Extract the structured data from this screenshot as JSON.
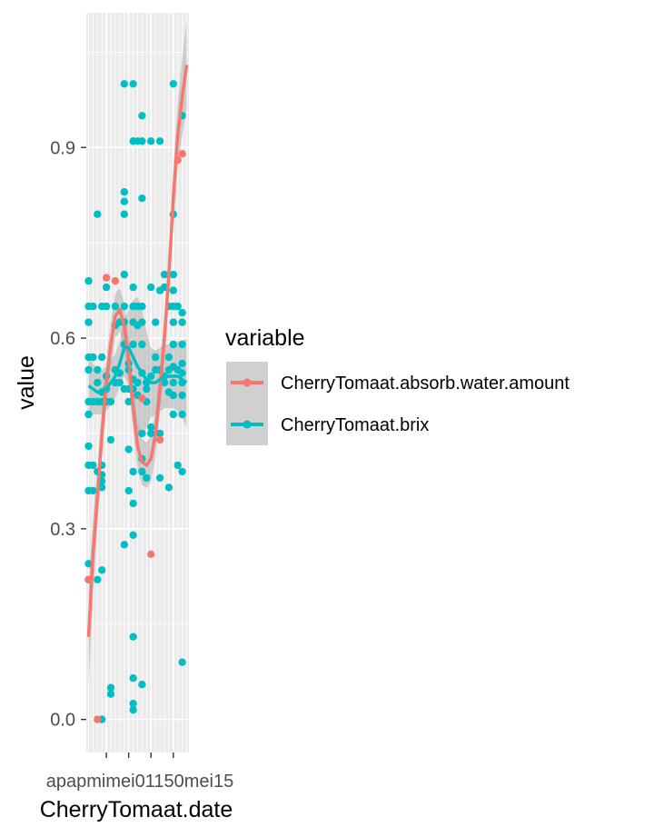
{
  "chart_data": {
    "type": "scatter",
    "title": "",
    "xlabel": "CherryTomaat.date",
    "ylabel": "value",
    "xlim": [
      0.5,
      23.5
    ],
    "ylim": [
      -0.052,
      1.112
    ],
    "y_ticks": [
      0.0,
      0.3,
      0.6,
      0.9
    ],
    "y_tick_labels": [
      "0.0",
      "0.3",
      "0.6",
      "0.9"
    ],
    "x_ticks": [
      5,
      10,
      15,
      20
    ],
    "x_tick_labels": [
      "apr",
      "apr",
      "mei",
      "mei"
    ],
    "x_tick_text": "apapmimei01150mei15",
    "grid": true,
    "legend_title": "variable",
    "legend_position": "right",
    "colors": {
      "absorb": "#F8766D",
      "brix": "#00BFC4",
      "panel": "#EBEBEB",
      "ribbon": "#999999"
    },
    "series": [
      {
        "name": "CherryTomaat.absorb.water.amount",
        "color": "#F8766D",
        "points": [
          [
            1,
            0.22
          ],
          [
            3,
            0.0
          ],
          [
            5,
            0.695
          ],
          [
            7,
            0.69
          ],
          [
            13,
            0.505
          ],
          [
            15,
            0.26
          ],
          [
            17,
            0.44
          ],
          [
            21,
            0.88
          ],
          [
            22,
            0.89
          ]
        ],
        "smooth": [
          [
            1,
            0.13
          ],
          [
            2,
            0.26
          ],
          [
            3,
            0.35
          ],
          [
            4,
            0.45
          ],
          [
            5,
            0.53
          ],
          [
            6,
            0.59
          ],
          [
            7,
            0.635
          ],
          [
            8,
            0.645
          ],
          [
            9,
            0.62
          ],
          [
            10,
            0.565
          ],
          [
            11,
            0.49
          ],
          [
            12,
            0.43
          ],
          [
            13,
            0.405
          ],
          [
            14,
            0.4
          ],
          [
            15,
            0.41
          ],
          [
            16,
            0.45
          ],
          [
            17,
            0.52
          ],
          [
            18,
            0.6
          ],
          [
            19,
            0.7
          ],
          [
            20,
            0.82
          ],
          [
            21,
            0.92
          ],
          [
            22,
            0.98
          ],
          [
            23,
            1.03
          ]
        ],
        "band_width": [
          0.075,
          0.06,
          0.045,
          0.04,
          0.038,
          0.036,
          0.035,
          0.034,
          0.034,
          0.035,
          0.036,
          0.036,
          0.036,
          0.036,
          0.036,
          0.036,
          0.036,
          0.038,
          0.04,
          0.045,
          0.05,
          0.06,
          0.07
        ]
      },
      {
        "name": "CherryTomaat.brix",
        "color": "#00BFC4",
        "points": [
          [
            1,
            0.69
          ],
          [
            1,
            0.65
          ],
          [
            1,
            0.625
          ],
          [
            1,
            0.57
          ],
          [
            1,
            0.55
          ],
          [
            1,
            0.5
          ],
          [
            1,
            0.48
          ],
          [
            1,
            0.43
          ],
          [
            1,
            0.4
          ],
          [
            1,
            0.36
          ],
          [
            1,
            0.245
          ],
          [
            1,
            0.22
          ],
          [
            2,
            0.65
          ],
          [
            2,
            0.57
          ],
          [
            2,
            0.5
          ],
          [
            2,
            0.4
          ],
          [
            2,
            0.36
          ],
          [
            3,
            0.795
          ],
          [
            3,
            0.55
          ],
          [
            3,
            0.53
          ],
          [
            3,
            0.5
          ],
          [
            3,
            0.39
          ],
          [
            3,
            0.22
          ],
          [
            4,
            0.65
          ],
          [
            4,
            0.57
          ],
          [
            4,
            0.515
          ],
          [
            4,
            0.5
          ],
          [
            4,
            0.4
          ],
          [
            4,
            0.385
          ],
          [
            4,
            0.375
          ],
          [
            4,
            0.365
          ],
          [
            4,
            0.235
          ],
          [
            4,
            0.0
          ],
          [
            5,
            0.68
          ],
          [
            5,
            0.65
          ],
          [
            5,
            0.54
          ],
          [
            5,
            0.52
          ],
          [
            5,
            0.5
          ],
          [
            6,
            0.5
          ],
          [
            6,
            0.44
          ],
          [
            6,
            0.05
          ],
          [
            6,
            0.04
          ],
          [
            7,
            0.65
          ],
          [
            7,
            0.62
          ],
          [
            7,
            0.55
          ],
          [
            7,
            0.53
          ],
          [
            8,
            0.625
          ],
          [
            8,
            0.545
          ],
          [
            8,
            0.53
          ],
          [
            9,
            1.0
          ],
          [
            9,
            0.83
          ],
          [
            9,
            0.815
          ],
          [
            9,
            0.795
          ],
          [
            9,
            0.7
          ],
          [
            9,
            0.65
          ],
          [
            9,
            0.625
          ],
          [
            9,
            0.59
          ],
          [
            9,
            0.52
          ],
          [
            9,
            0.275
          ],
          [
            10,
            0.56
          ],
          [
            10,
            0.55
          ],
          [
            10,
            0.52
          ],
          [
            10,
            0.5
          ],
          [
            10,
            0.425
          ],
          [
            10,
            0.36
          ],
          [
            11,
            1.0
          ],
          [
            11,
            0.91
          ],
          [
            11,
            0.68
          ],
          [
            11,
            0.65
          ],
          [
            11,
            0.625
          ],
          [
            11,
            0.59
          ],
          [
            11,
            0.535
          ],
          [
            11,
            0.52
          ],
          [
            11,
            0.39
          ],
          [
            11,
            0.34
          ],
          [
            11,
            0.29
          ],
          [
            11,
            0.13
          ],
          [
            11,
            0.065
          ],
          [
            11,
            0.025
          ],
          [
            11,
            0.015
          ],
          [
            12,
            0.91
          ],
          [
            12,
            0.65
          ],
          [
            12,
            0.62
          ],
          [
            12,
            0.53
          ],
          [
            12,
            0.51
          ],
          [
            13,
            0.95
          ],
          [
            13,
            0.91
          ],
          [
            13,
            0.82
          ],
          [
            13,
            0.65
          ],
          [
            13,
            0.625
          ],
          [
            13,
            0.59
          ],
          [
            13,
            0.545
          ],
          [
            13,
            0.45
          ],
          [
            13,
            0.41
          ],
          [
            13,
            0.39
          ],
          [
            13,
            0.055
          ],
          [
            14,
            0.53
          ],
          [
            14,
            0.52
          ],
          [
            14,
            0.5
          ],
          [
            14,
            0.38
          ],
          [
            15,
            0.91
          ],
          [
            15,
            0.68
          ],
          [
            15,
            0.54
          ],
          [
            15,
            0.46
          ],
          [
            15,
            0.45
          ],
          [
            16,
            0.625
          ],
          [
            16,
            0.57
          ],
          [
            16,
            0.55
          ],
          [
            17,
            0.91
          ],
          [
            17,
            0.675
          ],
          [
            17,
            0.55
          ],
          [
            17,
            0.45
          ],
          [
            17,
            0.38
          ],
          [
            18,
            0.7
          ],
          [
            18,
            0.68
          ],
          [
            18,
            0.54
          ],
          [
            18,
            0.53
          ],
          [
            19,
            0.65
          ],
          [
            19,
            0.57
          ],
          [
            19,
            0.55
          ],
          [
            19,
            0.515
          ],
          [
            19,
            0.365
          ],
          [
            20,
            1.0
          ],
          [
            20,
            0.795
          ],
          [
            20,
            0.7
          ],
          [
            20,
            0.675
          ],
          [
            20,
            0.65
          ],
          [
            20,
            0.625
          ],
          [
            20,
            0.59
          ],
          [
            20,
            0.555
          ],
          [
            20,
            0.53
          ],
          [
            20,
            0.51
          ],
          [
            20,
            0.48
          ],
          [
            21,
            0.65
          ],
          [
            21,
            0.55
          ],
          [
            21,
            0.4
          ],
          [
            22,
            0.95
          ],
          [
            22,
            0.64
          ],
          [
            22,
            0.625
          ],
          [
            22,
            0.59
          ],
          [
            22,
            0.56
          ],
          [
            22,
            0.545
          ],
          [
            22,
            0.53
          ],
          [
            22,
            0.51
          ],
          [
            22,
            0.48
          ],
          [
            22,
            0.39
          ],
          [
            22,
            0.09
          ]
        ],
        "smooth": [
          [
            1,
            0.525
          ],
          [
            2,
            0.52
          ],
          [
            3,
            0.515
          ],
          [
            4,
            0.515
          ],
          [
            5,
            0.52
          ],
          [
            6,
            0.53
          ],
          [
            7,
            0.54
          ],
          [
            8,
            0.56
          ],
          [
            9,
            0.585
          ],
          [
            10,
            0.585
          ],
          [
            11,
            0.57
          ],
          [
            12,
            0.555
          ],
          [
            13,
            0.545
          ],
          [
            14,
            0.535
          ],
          [
            15,
            0.53
          ],
          [
            16,
            0.53
          ],
          [
            17,
            0.535
          ],
          [
            18,
            0.54
          ],
          [
            19,
            0.54
          ],
          [
            20,
            0.54
          ],
          [
            21,
            0.54
          ],
          [
            22,
            0.535
          ],
          [
            23,
            0.53
          ]
        ],
        "band_width": [
          0.045,
          0.04,
          0.035,
          0.035,
          0.035,
          0.035,
          0.035,
          0.035,
          0.045,
          0.06,
          0.09,
          0.11,
          0.1,
          0.075,
          0.055,
          0.05,
          0.05,
          0.05,
          0.05,
          0.05,
          0.055,
          0.06,
          0.07
        ]
      }
    ]
  }
}
